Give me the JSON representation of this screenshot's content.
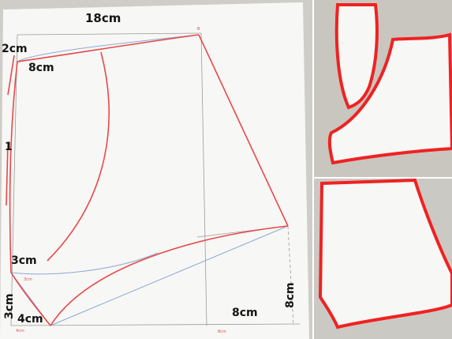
{
  "main_panel": {
    "labels": {
      "top_width": "18cm",
      "top_left": "2cm",
      "inner": "8cm",
      "left_side": "1",
      "lower_curve": "3cm",
      "bottom_left_edge": "3cm",
      "bottom": "4cm",
      "bottom_right": "8cm",
      "right_vertical": "8cm"
    }
  },
  "colors": {
    "outline_red": "#e8484a",
    "guide_blue": "#8fa9d6",
    "pencil": "#9a9a9a",
    "paper": "#f7f7f5",
    "background": "#cfcdc8",
    "piece_edge": "#ef2222"
  }
}
